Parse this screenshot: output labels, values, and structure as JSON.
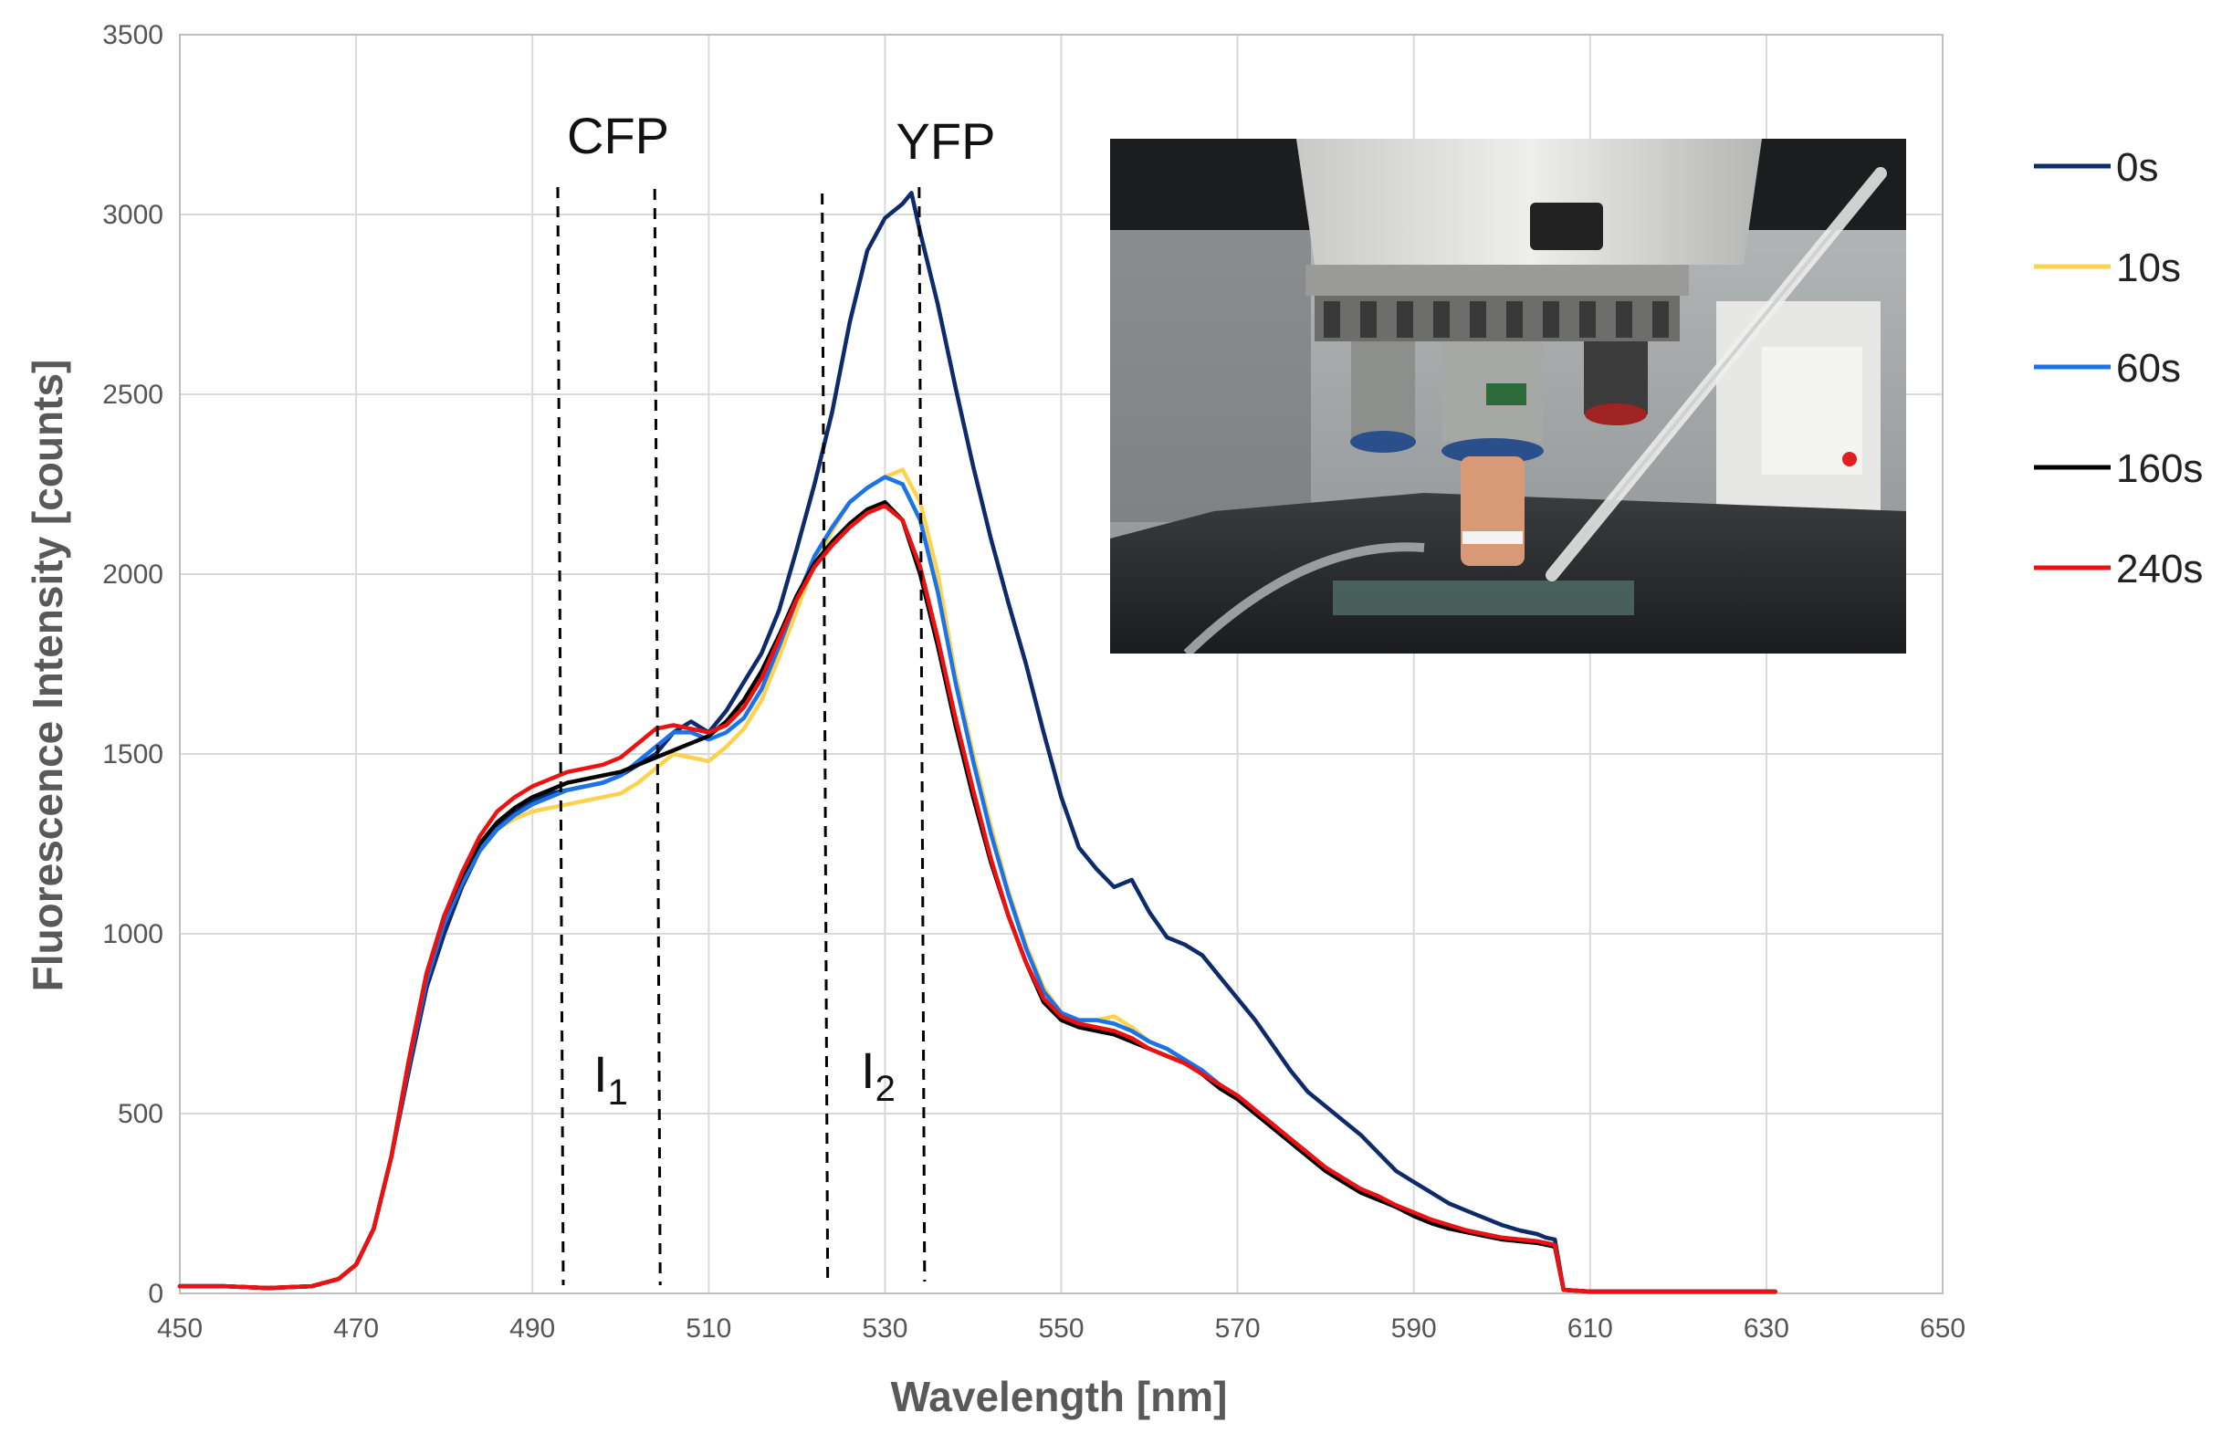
{
  "chart_data": {
    "type": "line",
    "title": "",
    "xlabel": "Wavelength [nm]",
    "ylabel": "Fluorescence Intensity [counts]",
    "xlim": [
      450,
      650
    ],
    "ylim": [
      0,
      3500
    ],
    "x_ticks": [
      "450",
      "470",
      "490",
      "510",
      "530",
      "550",
      "570",
      "590",
      "610",
      "630",
      "650"
    ],
    "y_ticks": [
      "0",
      "500",
      "1000",
      "1500",
      "2000",
      "2500",
      "3000",
      "3500"
    ],
    "grid": true,
    "legend_position": "right",
    "annotations": [
      {
        "name": "cfp-label",
        "text": "CFP"
      },
      {
        "name": "yfp-label",
        "text": "YFP"
      },
      {
        "name": "i1-label",
        "text": "I",
        "sub": "1"
      },
      {
        "name": "i2-label",
        "text": "I",
        "sub": "2"
      }
    ],
    "band_limits_nm": [
      493.5,
      504.5,
      523.5,
      534.5
    ],
    "inset": "photograph of microscope objective over sample slide with pipette",
    "series": [
      {
        "name": "0s",
        "color": "#0d2a6b",
        "x": [
          450,
          455,
          460,
          465,
          468,
          470,
          472,
          474,
          476,
          478,
          480,
          482,
          484,
          486,
          488,
          490,
          492,
          494,
          496,
          498,
          500,
          502,
          504,
          506,
          508,
          510,
          512,
          514,
          516,
          518,
          520,
          522,
          524,
          526,
          528,
          530,
          532,
          533,
          534,
          536,
          538,
          540,
          542,
          544,
          546,
          548,
          550,
          552,
          554,
          556,
          558,
          560,
          562,
          564,
          566,
          568,
          570,
          572,
          574,
          576,
          578,
          580,
          582,
          584,
          586,
          588,
          590,
          592,
          594,
          596,
          598,
          600,
          602,
          604,
          605,
          606,
          607,
          610,
          631
        ],
        "y": [
          20,
          20,
          15,
          20,
          40,
          80,
          180,
          380,
          620,
          850,
          1000,
          1130,
          1230,
          1300,
          1340,
          1370,
          1390,
          1400,
          1410,
          1420,
          1440,
          1470,
          1500,
          1560,
          1590,
          1560,
          1620,
          1700,
          1780,
          1900,
          2070,
          2250,
          2450,
          2700,
          2900,
          2990,
          3030,
          3060,
          2950,
          2750,
          2520,
          2300,
          2100,
          1920,
          1750,
          1560,
          1380,
          1240,
          1180,
          1130,
          1150,
          1060,
          990,
          970,
          940,
          880,
          820,
          760,
          690,
          620,
          560,
          520,
          480,
          440,
          390,
          340,
          310,
          280,
          250,
          230,
          210,
          190,
          175,
          165,
          155,
          150,
          10,
          5,
          5
        ]
      },
      {
        "name": "10s",
        "color": "#ffd24d",
        "x": [
          450,
          455,
          460,
          465,
          468,
          470,
          472,
          474,
          476,
          478,
          480,
          482,
          484,
          486,
          488,
          490,
          492,
          494,
          496,
          498,
          500,
          502,
          504,
          506,
          508,
          510,
          512,
          514,
          516,
          518,
          520,
          522,
          524,
          526,
          528,
          530,
          532,
          534,
          536,
          538,
          540,
          542,
          544,
          546,
          548,
          550,
          552,
          554,
          556,
          558,
          560,
          562,
          564,
          566,
          568,
          570,
          572,
          574,
          576,
          578,
          580,
          582,
          584,
          586,
          588,
          590,
          592,
          594,
          596,
          598,
          600,
          602,
          604,
          605,
          606,
          607,
          610,
          631
        ],
        "y": [
          20,
          20,
          15,
          20,
          40,
          80,
          180,
          380,
          640,
          880,
          1030,
          1140,
          1230,
          1290,
          1320,
          1340,
          1350,
          1360,
          1370,
          1380,
          1390,
          1420,
          1460,
          1500,
          1490,
          1480,
          1520,
          1570,
          1650,
          1770,
          1900,
          2030,
          2120,
          2200,
          2240,
          2270,
          2290,
          2200,
          2000,
          1720,
          1500,
          1300,
          1120,
          970,
          850,
          780,
          760,
          760,
          770,
          740,
          700,
          680,
          640,
          610,
          570,
          540,
          500,
          460,
          420,
          380,
          340,
          310,
          280,
          260,
          240,
          220,
          200,
          185,
          170,
          160,
          150,
          145,
          140,
          135,
          130,
          10,
          5,
          5
        ]
      },
      {
        "name": "60s",
        "color": "#1a73e8",
        "x": [
          450,
          455,
          460,
          465,
          468,
          470,
          472,
          474,
          476,
          478,
          480,
          482,
          484,
          486,
          488,
          490,
          492,
          494,
          496,
          498,
          500,
          502,
          504,
          506,
          508,
          510,
          512,
          514,
          516,
          518,
          520,
          522,
          524,
          526,
          528,
          530,
          532,
          534,
          536,
          538,
          540,
          542,
          544,
          546,
          548,
          550,
          552,
          554,
          556,
          558,
          560,
          562,
          564,
          566,
          568,
          570,
          572,
          574,
          576,
          578,
          580,
          582,
          584,
          586,
          588,
          590,
          592,
          594,
          596,
          598,
          600,
          602,
          604,
          605,
          606,
          607,
          610,
          631
        ],
        "y": [
          20,
          20,
          15,
          20,
          40,
          80,
          180,
          380,
          640,
          870,
          1030,
          1140,
          1230,
          1290,
          1330,
          1360,
          1380,
          1400,
          1410,
          1420,
          1440,
          1480,
          1520,
          1560,
          1560,
          1540,
          1560,
          1600,
          1680,
          1800,
          1930,
          2050,
          2130,
          2200,
          2240,
          2270,
          2250,
          2150,
          1950,
          1700,
          1480,
          1280,
          1110,
          960,
          840,
          780,
          760,
          760,
          750,
          730,
          700,
          680,
          650,
          620,
          580,
          550,
          510,
          470,
          430,
          390,
          340,
          310,
          290,
          270,
          240,
          220,
          200,
          190,
          175,
          165,
          155,
          150,
          145,
          140,
          135,
          10,
          5,
          5
        ]
      },
      {
        "name": "160s",
        "color": "#000000",
        "x": [
          450,
          455,
          460,
          465,
          468,
          470,
          472,
          474,
          476,
          478,
          480,
          482,
          484,
          486,
          488,
          490,
          492,
          494,
          496,
          498,
          500,
          502,
          504,
          506,
          508,
          510,
          512,
          514,
          516,
          518,
          520,
          522,
          524,
          526,
          528,
          530,
          532,
          534,
          536,
          538,
          540,
          542,
          544,
          546,
          548,
          550,
          552,
          554,
          556,
          558,
          560,
          562,
          564,
          566,
          568,
          570,
          572,
          574,
          576,
          578,
          580,
          582,
          584,
          586,
          588,
          590,
          592,
          594,
          596,
          598,
          600,
          602,
          604,
          605,
          606,
          607,
          610,
          631
        ],
        "y": [
          20,
          20,
          15,
          20,
          40,
          80,
          180,
          380,
          650,
          890,
          1050,
          1160,
          1250,
          1310,
          1350,
          1380,
          1400,
          1420,
          1430,
          1440,
          1450,
          1470,
          1490,
          1510,
          1530,
          1550,
          1590,
          1650,
          1730,
          1830,
          1940,
          2030,
          2090,
          2140,
          2180,
          2200,
          2150,
          2000,
          1800,
          1580,
          1380,
          1200,
          1050,
          920,
          810,
          760,
          740,
          730,
          720,
          700,
          680,
          660,
          640,
          610,
          570,
          540,
          500,
          460,
          420,
          380,
          340,
          310,
          280,
          260,
          240,
          215,
          195,
          180,
          170,
          160,
          150,
          145,
          140,
          135,
          130,
          10,
          5,
          5
        ]
      },
      {
        "name": "240s",
        "color": "#ee1111",
        "x": [
          450,
          455,
          460,
          465,
          468,
          470,
          472,
          474,
          476,
          478,
          480,
          482,
          484,
          486,
          488,
          490,
          492,
          494,
          496,
          498,
          500,
          502,
          504,
          506,
          508,
          510,
          512,
          514,
          516,
          518,
          520,
          522,
          524,
          526,
          528,
          530,
          532,
          534,
          536,
          538,
          540,
          542,
          544,
          546,
          548,
          550,
          552,
          554,
          556,
          558,
          560,
          562,
          564,
          566,
          568,
          570,
          572,
          574,
          576,
          578,
          580,
          582,
          584,
          586,
          588,
          590,
          592,
          594,
          596,
          598,
          600,
          602,
          604,
          605,
          606,
          607,
          610,
          631
        ],
        "y": [
          20,
          20,
          15,
          20,
          40,
          80,
          180,
          380,
          650,
          890,
          1050,
          1170,
          1270,
          1340,
          1380,
          1410,
          1430,
          1450,
          1460,
          1470,
          1490,
          1530,
          1570,
          1580,
          1570,
          1560,
          1580,
          1630,
          1710,
          1820,
          1930,
          2020,
          2080,
          2130,
          2170,
          2190,
          2150,
          2020,
          1820,
          1600,
          1400,
          1210,
          1050,
          920,
          820,
          770,
          750,
          740,
          730,
          710,
          680,
          660,
          640,
          610,
          580,
          550,
          510,
          470,
          430,
          390,
          350,
          320,
          290,
          270,
          245,
          225,
          205,
          190,
          175,
          165,
          155,
          150,
          145,
          140,
          135,
          10,
          5,
          5
        ]
      }
    ]
  }
}
